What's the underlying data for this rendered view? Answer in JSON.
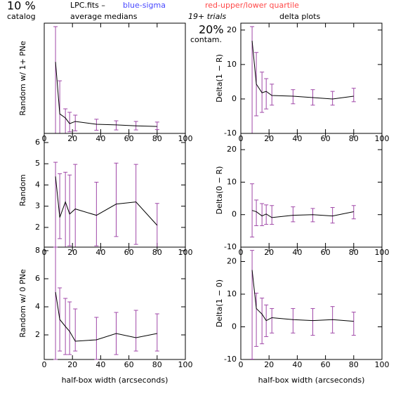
{
  "header": {
    "contamination_catalog": "10 %",
    "catalog_label": "catalog",
    "file": "LPC.fits  –",
    "sigma_note": "blue-sigma",
    "quartile_note": "red-upper/lower quartile",
    "left_title": "average medians",
    "trials": "19+ trials",
    "contamination_trials": "20%",
    "contam_label": "contam.",
    "right_title": "delta plots"
  },
  "chart_data": [
    {
      "type": "line",
      "ylabel": "Random w/ 1+ PNe",
      "x": [
        8,
        11,
        15,
        18,
        22,
        37,
        51,
        65,
        80
      ],
      "values": [
        22.7,
        6.2,
        4.9,
        3.1,
        3.8,
        2.9,
        2.7,
        2.4,
        2.2
      ],
      "error_low": [
        0,
        0,
        0,
        0.5,
        0.8,
        1.0,
        1.1,
        1.1,
        1.2
      ],
      "error_high": [
        33.9,
        16.7,
        7.8,
        6.7,
        5.8,
        4.5,
        4.0,
        3.8,
        3.6
      ],
      "color": "#000000",
      "error_color": "#a048a8",
      "xlim": [
        0,
        100
      ],
      "xticks": [
        0,
        20,
        40,
        60,
        80,
        100
      ],
      "ylim": [
        0,
        35
      ]
    },
    {
      "type": "line",
      "ylabel": "Delta(1 − R)",
      "x": [
        8,
        11,
        15,
        18,
        22,
        37,
        51,
        65,
        80
      ],
      "values": [
        16.9,
        4.3,
        1.8,
        2.2,
        1.0,
        0.8,
        0.4,
        0,
        0.8
      ],
      "error_low": [
        -10,
        -4.9,
        -3.9,
        -2.9,
        -1.8,
        -1.4,
        -1.8,
        -1.8,
        -0.8
      ],
      "error_high": [
        21,
        13.5,
        7.8,
        5.9,
        4.3,
        2.7,
        2.7,
        2.2,
        3.1
      ],
      "color": "#000000",
      "error_color": "#a048a8",
      "xlim": [
        0,
        100
      ],
      "xticks": [
        0,
        20,
        40,
        60,
        80,
        100
      ],
      "ylim": [
        -10,
        22
      ],
      "yticks": [
        -10,
        0,
        10,
        20
      ]
    },
    {
      "type": "line",
      "ylabel": "Random",
      "x": [
        8,
        11,
        15,
        18,
        22,
        37,
        51,
        65,
        80
      ],
      "values": [
        4.4,
        2.47,
        3.2,
        2.63,
        2.87,
        2.57,
        3.1,
        3.2,
        2.1
      ],
      "error_low": [
        1.07,
        1.47,
        1.07,
        1.13,
        1.07,
        1.13,
        1.57,
        1.2,
        1.07
      ],
      "error_high": [
        5.07,
        4.53,
        4.6,
        4.47,
        4.97,
        4.13,
        5.03,
        4.97,
        3.13
      ],
      "color": "#000000",
      "error_color": "#a048a8",
      "xlim": [
        0,
        100
      ],
      "xticks": [
        0,
        20,
        40,
        60,
        80,
        100
      ],
      "ylim": [
        1.07,
        6.43
      ],
      "yticks": [
        2,
        3,
        4,
        5,
        6
      ]
    },
    {
      "type": "line",
      "ylabel": "Delta(0 − R)",
      "x": [
        8,
        11,
        15,
        18,
        22,
        37,
        51,
        65,
        80
      ],
      "values": [
        1.3,
        0.9,
        -0.4,
        0.2,
        -0.9,
        -0.2,
        0,
        -0.4,
        0.9
      ],
      "error_low": [
        -6.9,
        -3.4,
        -3.4,
        -3,
        -3,
        -2.2,
        -2.2,
        -2.6,
        -1.3
      ],
      "error_high": [
        9.5,
        4.5,
        3.4,
        3,
        2.8,
        2.4,
        1.9,
        2.2,
        2.8
      ],
      "color": "#000000",
      "error_color": "#a048a8",
      "xlim": [
        0,
        100
      ],
      "xticks": [
        0,
        20,
        40,
        60,
        80,
        100
      ],
      "ylim": [
        -10,
        25
      ],
      "yticks": [
        -10,
        0,
        10,
        20
      ]
    },
    {
      "type": "line",
      "ylabel": "Random w/ 0 PNe",
      "xlabel": "half-box width (arcseconds)",
      "x": [
        8,
        11,
        15,
        18,
        22,
        37,
        51,
        65,
        80
      ],
      "values": [
        5.05,
        3.1,
        2.6,
        2.25,
        1.55,
        1.65,
        2.1,
        1.8,
        2.1
      ],
      "error_low": [
        0.25,
        0.85,
        0.6,
        0.6,
        0.85,
        0.25,
        0.6,
        0.85,
        0.85
      ],
      "error_high": [
        8.25,
        5.35,
        4.6,
        4.35,
        3.85,
        3.25,
        3.6,
        3.75,
        3.5
      ],
      "color": "#000000",
      "error_color": "#a048a8",
      "xlim": [
        0,
        100
      ],
      "xticks": [
        0,
        20,
        40,
        60,
        80,
        100
      ],
      "ylim": [
        0.25,
        8.25
      ],
      "yticks": [
        2,
        4,
        6,
        8
      ]
    },
    {
      "type": "line",
      "ylabel": "Delta(1 − 0)",
      "xlabel": "half-box width (arcseconds)",
      "x": [
        8,
        11,
        15,
        18,
        22,
        37,
        51,
        65,
        80
      ],
      "values": [
        17.4,
        5.6,
        3.9,
        1.9,
        2.8,
        2.2,
        1.9,
        2.2,
        1.7
      ],
      "error_low": [
        -9.9,
        -6,
        -5.2,
        -3,
        -1.9,
        -1.9,
        -2.6,
        -1.9,
        -2.6
      ],
      "error_high": [
        23.4,
        10.3,
        8.8,
        6.7,
        5.6,
        5.6,
        5.6,
        6.2,
        4.5
      ],
      "color": "#000000",
      "error_color": "#a048a8",
      "xlim": [
        0,
        100
      ],
      "xticks": [
        0,
        20,
        40,
        60,
        80,
        100
      ],
      "ylim": [
        -10,
        24.4
      ],
      "yticks": [
        -10,
        0,
        10,
        20
      ]
    }
  ]
}
